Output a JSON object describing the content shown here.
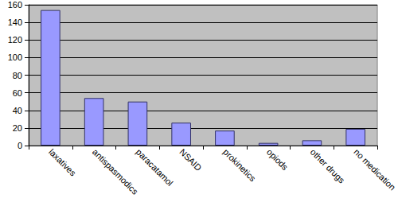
{
  "chart_data": {
    "type": "bar",
    "categories": [
      "laxatives",
      "antispasmodics",
      "paracatamol",
      "NSAID",
      "prokinetics",
      "opiods",
      "other drugs",
      "no medication"
    ],
    "values": [
      154,
      54,
      50,
      26,
      17,
      3,
      6,
      19
    ],
    "color": "#9999ff",
    "ylim": [
      0,
      160
    ],
    "yticks": [
      0,
      20,
      40,
      60,
      80,
      100,
      120,
      140,
      160
    ],
    "grid": true
  }
}
